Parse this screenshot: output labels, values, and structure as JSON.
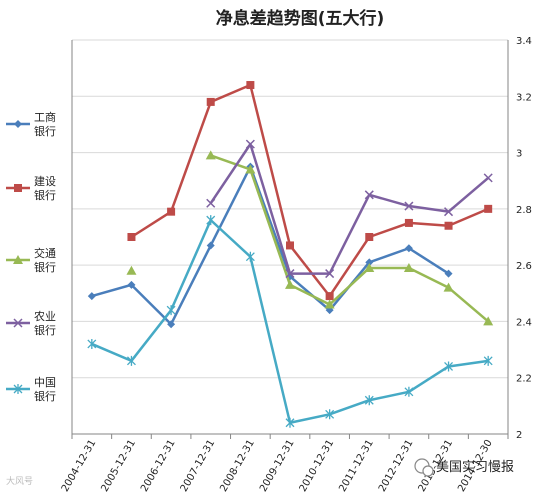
{
  "chart_data": {
    "type": "line",
    "title": "净息差趋势图(五大行)",
    "xlabel": "",
    "ylabel": "",
    "categories": [
      "2004-12-31",
      "2005-12-31",
      "2006-12-31",
      "2007-12-31",
      "2008-12-31",
      "2009-12-31",
      "2010-12-31",
      "2011-12-31",
      "2012-12-31",
      "2013-12-31",
      "2014-12-30"
    ],
    "ylim": [
      2,
      3.4
    ],
    "yticks": [
      2,
      2.2,
      2.4,
      2.6,
      2.8,
      3,
      3.2,
      3.4
    ],
    "ytick_labels": [
      "2",
      "2.2",
      "2.4",
      "2.6",
      "2.8",
      "3",
      "3.2",
      "3.4"
    ],
    "y_axis_side": "right",
    "grid": true,
    "legend_position": "left",
    "series": [
      {
        "name": "工商银行",
        "name_lines": [
          "工商",
          "银行"
        ],
        "color": "#4a7ebb",
        "marker": "diamond",
        "values": [
          2.49,
          2.53,
          2.39,
          2.67,
          2.95,
          2.56,
          2.44,
          2.61,
          2.66,
          2.57,
          null
        ]
      },
      {
        "name": "建设银行",
        "name_lines": [
          "建设",
          "银行"
        ],
        "color": "#be4b48",
        "marker": "square",
        "values": [
          null,
          2.7,
          2.79,
          3.18,
          3.24,
          2.67,
          2.49,
          2.7,
          2.75,
          2.74,
          2.8
        ]
      },
      {
        "name": "交通银行",
        "name_lines": [
          "交通",
          "银行"
        ],
        "color": "#98b954",
        "marker": "triangle",
        "values": [
          null,
          2.58,
          null,
          2.99,
          2.94,
          2.53,
          2.46,
          2.59,
          2.59,
          2.52,
          2.4
        ]
      },
      {
        "name": "农业银行",
        "name_lines": [
          "农业",
          "银行"
        ],
        "color": "#7d60a0",
        "marker": "x",
        "values": [
          null,
          null,
          null,
          2.82,
          3.03,
          2.57,
          2.57,
          2.85,
          2.81,
          2.79,
          2.91
        ]
      },
      {
        "name": "中国银行",
        "name_lines": [
          "中国",
          "银行"
        ],
        "color": "#46aac5",
        "marker": "star",
        "values": [
          2.32,
          2.26,
          2.44,
          2.76,
          2.63,
          2.04,
          2.07,
          2.12,
          2.15,
          2.24,
          2.26
        ]
      }
    ]
  },
  "watermark": {
    "left_text": "大风号",
    "right_text": "美国实习慢报"
  }
}
